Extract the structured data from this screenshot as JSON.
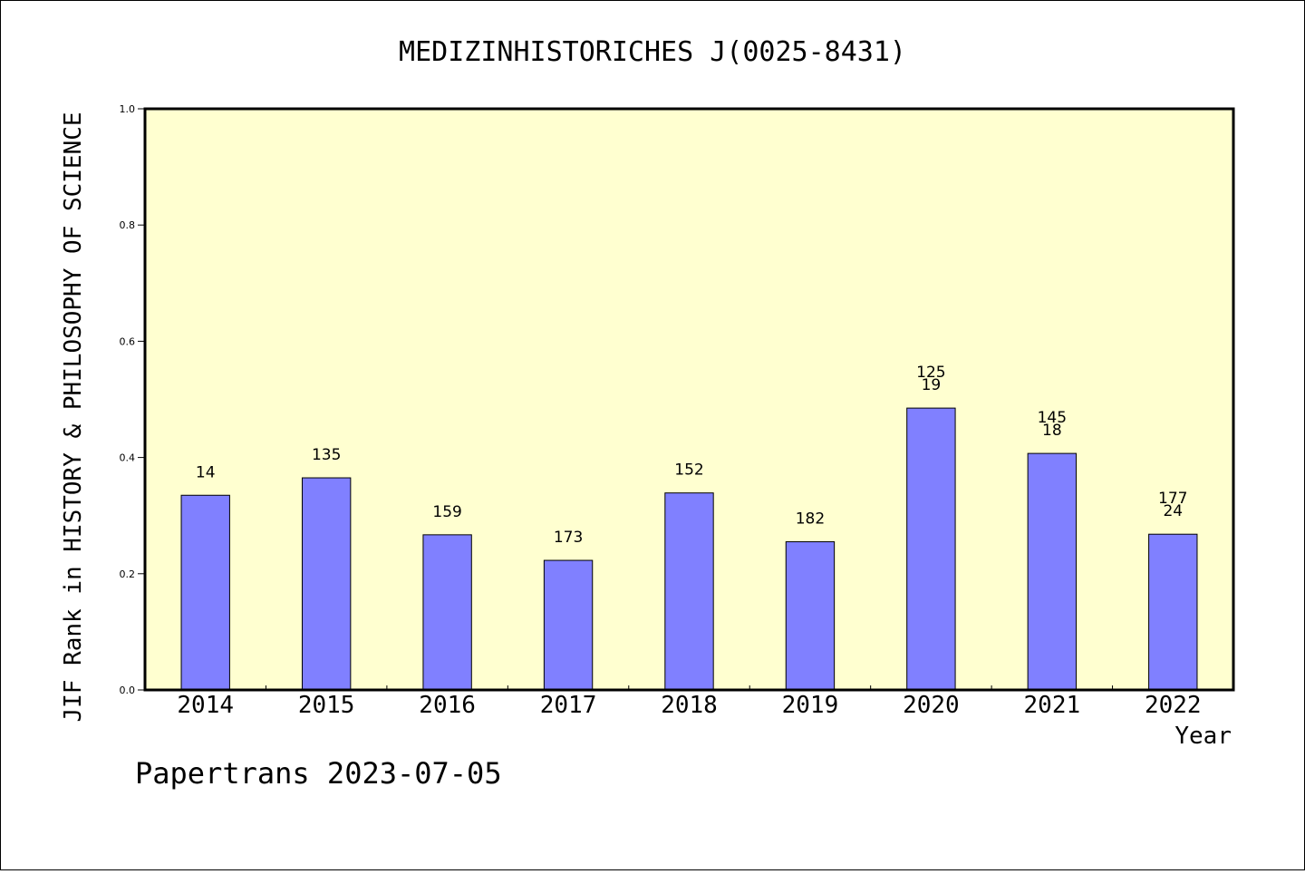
{
  "chart_data": {
    "type": "bar",
    "title": "MEDIZINHISTORICHES J(0025-8431)",
    "xlabel": "Year",
    "ylabel": "JIF Rank in HISTORY & PHILOSOPHY OF SCIENCE",
    "ylim": [
      0,
      1.0
    ],
    "yticks": [
      "0.0",
      "0.2",
      "0.4",
      "0.6",
      "0.8",
      "1.0"
    ],
    "grid": false,
    "categories": [
      "2014",
      "2015",
      "2016",
      "2017",
      "2018",
      "2019",
      "2020",
      "2021",
      "2022"
    ],
    "values": [
      0.335,
      0.365,
      0.267,
      0.223,
      0.339,
      0.255,
      0.485,
      0.407,
      0.268
    ],
    "bar_labels": [
      [
        "14"
      ],
      [
        "135"
      ],
      [
        "159"
      ],
      [
        "173"
      ],
      [
        "152"
      ],
      [
        "182"
      ],
      [
        "125",
        "19"
      ],
      [
        "145",
        "18"
      ],
      [
        "177",
        "24"
      ]
    ],
    "colors": {
      "bar": "#8080ff",
      "plot_background": "#ffffd0",
      "axis": "#000000"
    }
  },
  "footer": "Papertrans 2023-07-05"
}
